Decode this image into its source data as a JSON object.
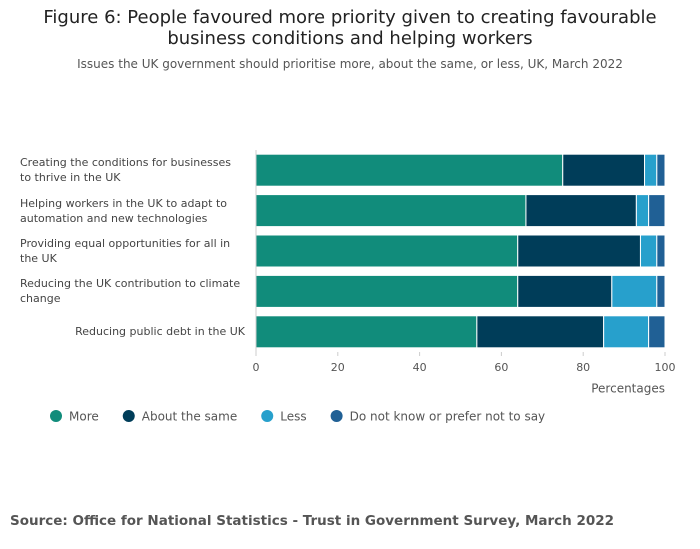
{
  "chart_data": {
    "type": "stacked-bar-horizontal",
    "title": "Figure 6: People favoured more priority given to creating favourable business conditions and helping workers",
    "subtitle": "Issues the UK government should prioritise more, about the same, or less, UK, March 2022",
    "xlabel": "Percentages",
    "source": "Source: Office for National Statistics - Trust in Government Survey, March 2022",
    "categories": [
      "Creating the conditions for businesses to thrive in the UK",
      "Helping workers in the UK to adapt to automation and new technologies",
      "Providing equal opportunities for all in the UK",
      "Reducing the UK contribution to climate change",
      "Reducing public debt in the UK"
    ],
    "series": [
      {
        "name": "More",
        "color": "#118c7b",
        "values": [
          75,
          66,
          64,
          64,
          54
        ]
      },
      {
        "name": "About the same",
        "color": "#003d59",
        "values": [
          20,
          27,
          30,
          23,
          31
        ]
      },
      {
        "name": "Less",
        "color": "#27a0cc",
        "values": [
          3,
          3,
          4,
          11,
          11
        ]
      },
      {
        "name": "Do not know or prefer not to say",
        "color": "#206095",
        "values": [
          2,
          4,
          2,
          2,
          4
        ]
      }
    ],
    "xlim": [
      0,
      100
    ],
    "xticks": [
      0,
      20,
      40,
      60,
      80,
      100
    ]
  }
}
